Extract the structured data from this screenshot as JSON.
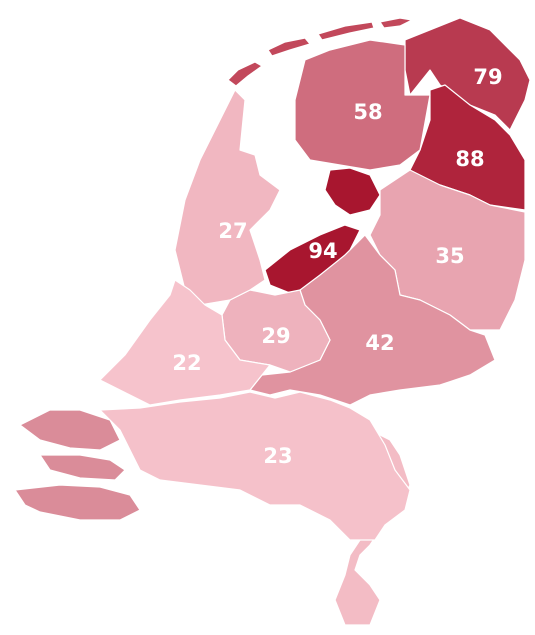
{
  "map": {
    "regions": [
      {
        "value": 79
      },
      {
        "value": 88
      },
      {
        "value": 58
      },
      {
        "value": 94
      },
      {
        "value": 35
      },
      {
        "value": 42
      },
      {
        "value": 29
      },
      {
        "value": 27
      },
      {
        "value": 22
      },
      {
        "value": 23
      }
    ],
    "color_low": "#f6c3cc",
    "color_high": "#a8162f"
  }
}
